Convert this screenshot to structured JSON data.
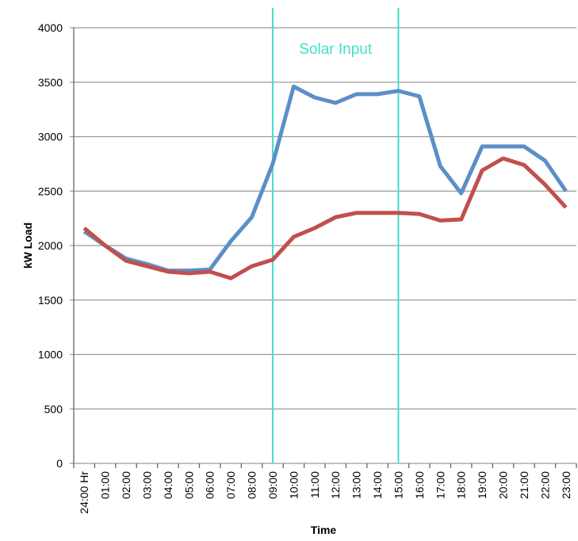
{
  "chart_data": {
    "type": "line",
    "ylabel": "kW Load",
    "xlabel": "Time",
    "annotation": "Solar Input",
    "categories": [
      "24:00 Hr",
      "01:00",
      "02:00",
      "03:00",
      "04:00",
      "05:00",
      "06:00",
      "07:00",
      "08:00",
      "09:00",
      "10:00",
      "11:00",
      "12:00",
      "13:00",
      "14:00",
      "15:00",
      "16:00",
      "17:00",
      "18:00",
      "19:00",
      "20:00",
      "21:00",
      "22:00",
      "23:00"
    ],
    "series": [
      {
        "color": "#5b8fc7",
        "values": [
          2130,
          2000,
          1880,
          1830,
          1770,
          1770,
          1780,
          2040,
          2260,
          2750,
          3460,
          3360,
          3310,
          3390,
          3390,
          3420,
          3370,
          2730,
          2480,
          2910,
          2910,
          2910,
          2780,
          2500
        ]
      },
      {
        "color": "#c0504d",
        "values": [
          2160,
          2000,
          1860,
          1810,
          1760,
          1745,
          1760,
          1700,
          1810,
          1870,
          2080,
          2160,
          2260,
          2300,
          2300,
          2300,
          2290,
          2230,
          2240,
          2690,
          2800,
          2740,
          2560,
          2350
        ]
      }
    ],
    "vlines": [
      9,
      15
    ],
    "vline_color": "#40e0c8",
    "ylim": [
      0,
      4000
    ],
    "yticks": [
      0,
      500,
      1000,
      1500,
      2000,
      2500,
      3000,
      3500,
      4000
    ],
    "grid": true
  }
}
